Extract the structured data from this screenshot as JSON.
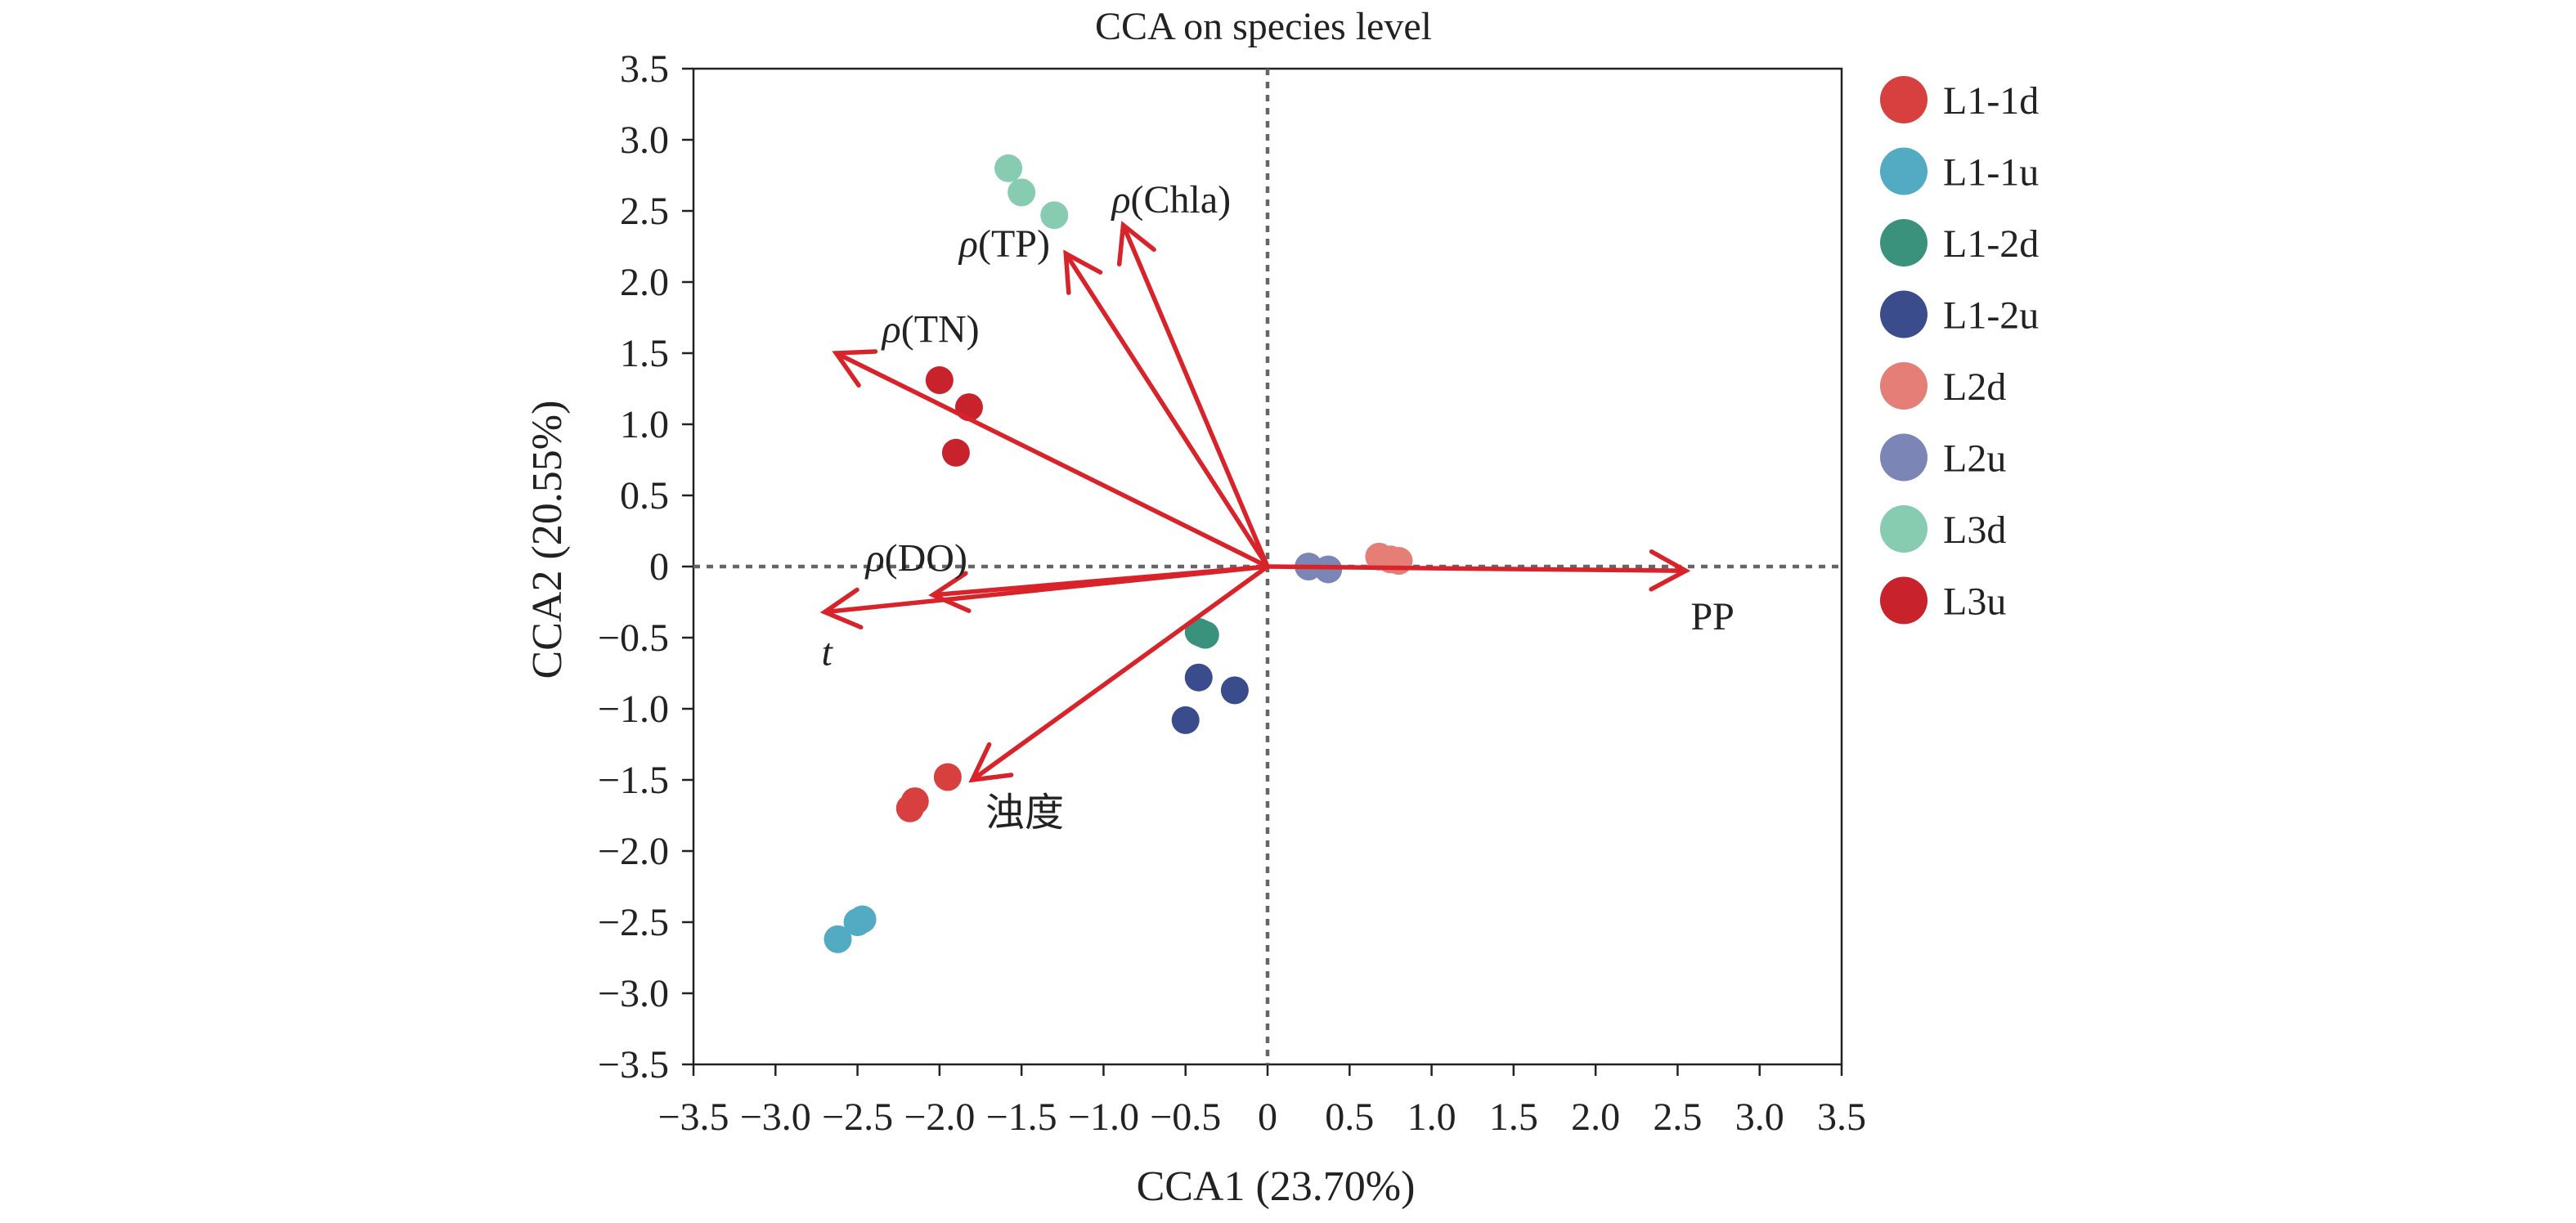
{
  "chart_data": {
    "type": "scatter",
    "title": "CCA on species level",
    "xlabel": "CCA1 (23.70%)",
    "ylabel": "CCA2 (20.55%)",
    "xlim": [
      -3.5,
      3.5
    ],
    "ylim": [
      -3.5,
      3.5
    ],
    "x_ticks": [
      "−3.5",
      "−3.0",
      "−2.5",
      "−2.0",
      "−1.5",
      "−1.0",
      "−0.5",
      "0",
      "0.5",
      "1.0",
      "1.5",
      "2.0",
      "2.5",
      "3.0",
      "3.5"
    ],
    "y_ticks": [
      "3.5",
      "3.0",
      "2.5",
      "2.0",
      "1.5",
      "1.0",
      "0.5",
      "0",
      "−0.5",
      "−1.0",
      "−1.5",
      "−2.0",
      "−2.5",
      "−3.0",
      "−3.5"
    ],
    "grid": false,
    "reference_lines": "dotted lines at x = 0 and y = 0",
    "legend_position": "right",
    "series": [
      {
        "name": "L1-1d",
        "color": "#d84040",
        "points": [
          [
            -1.95,
            -1.48
          ],
          [
            -2.15,
            -1.65
          ],
          [
            -2.18,
            -1.7
          ]
        ]
      },
      {
        "name": "L1-1u",
        "color": "#52abc2",
        "points": [
          [
            -2.62,
            -2.62
          ],
          [
            -2.5,
            -2.5
          ],
          [
            -2.47,
            -2.48
          ]
        ]
      },
      {
        "name": "L1-2d",
        "color": "#3a917c",
        "points": [
          [
            -0.42,
            -0.46
          ],
          [
            -0.38,
            -0.48
          ],
          [
            -0.4,
            -0.47
          ]
        ]
      },
      {
        "name": "L1-2u",
        "color": "#3b4c8c",
        "points": [
          [
            -0.42,
            -0.78
          ],
          [
            -0.2,
            -0.87
          ],
          [
            -0.5,
            -1.08
          ]
        ]
      },
      {
        "name": "L2d",
        "color": "#e57e76",
        "points": [
          [
            0.68,
            0.07
          ],
          [
            0.75,
            0.05
          ],
          [
            0.8,
            0.04
          ]
        ]
      },
      {
        "name": "L2u",
        "color": "#7b85b6",
        "points": [
          [
            0.25,
            0.0
          ],
          [
            0.37,
            -0.02
          ]
        ]
      },
      {
        "name": "L3d",
        "color": "#87ccb0",
        "points": [
          [
            -1.58,
            2.8
          ],
          [
            -1.5,
            2.63
          ],
          [
            -1.3,
            2.47
          ]
        ]
      },
      {
        "name": "L3u",
        "color": "#c8232c",
        "points": [
          [
            -2.0,
            1.31
          ],
          [
            -1.82,
            1.12
          ],
          [
            -1.9,
            0.8
          ]
        ]
      }
    ],
    "vectors": [
      {
        "name": "ρ(Chla)",
        "end": [
          -0.88,
          2.4
        ],
        "label_pos": [
          -0.95,
          2.58
        ]
      },
      {
        "name": "ρ(TP)",
        "end": [
          -1.23,
          2.2
        ],
        "label_pos": [
          -1.88,
          2.27
        ]
      },
      {
        "name": "ρ(TN)",
        "end": [
          -2.63,
          1.5
        ],
        "label_pos": [
          -2.35,
          1.67
        ]
      },
      {
        "name": "ρ(DO)",
        "end": [
          -2.04,
          -0.2
        ],
        "label_pos": [
          -2.45,
          0.06
        ]
      },
      {
        "name": "t",
        "end": [
          -2.7,
          -0.32
        ],
        "label_pos": [
          -2.72,
          -0.6
        ]
      },
      {
        "name": "浊度",
        "end": [
          -1.8,
          -1.5
        ],
        "label_pos": [
          -1.72,
          -1.73
        ]
      },
      {
        "name": "PP",
        "end": [
          2.55,
          -0.03
        ],
        "label_pos": [
          2.58,
          -0.35
        ]
      }
    ],
    "arrow_color": "#d8232a"
  }
}
